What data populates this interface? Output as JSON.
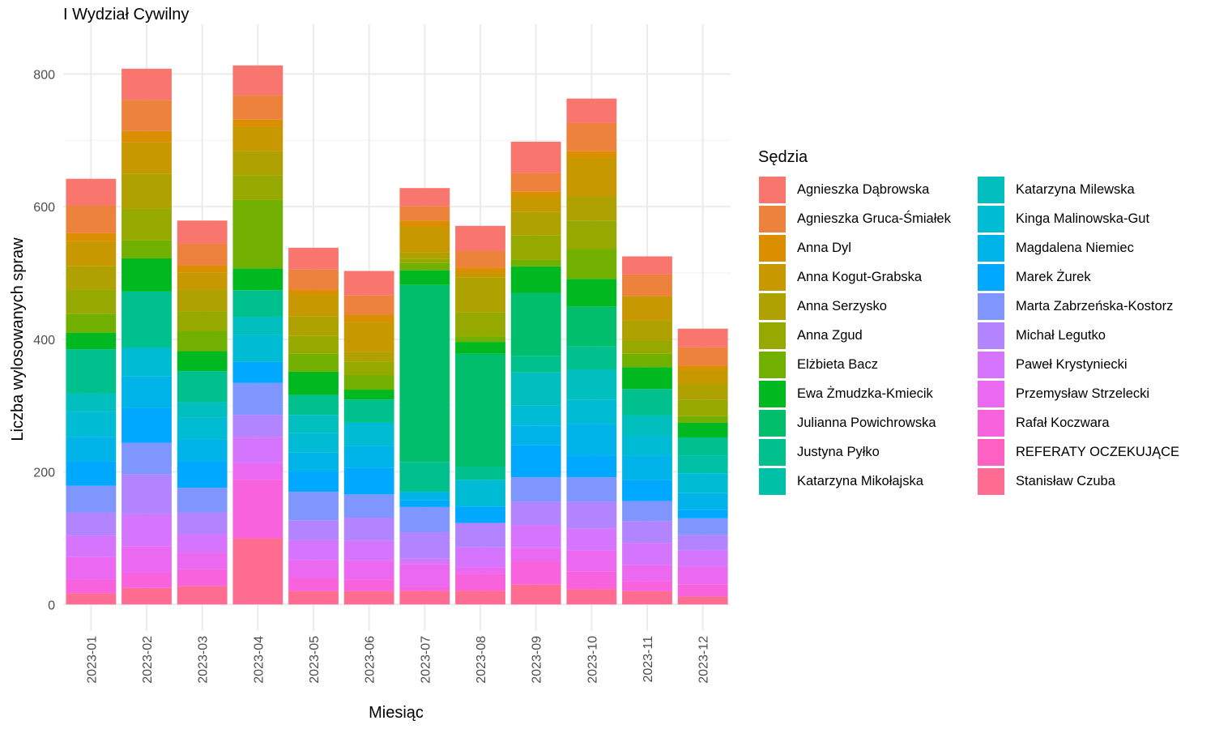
{
  "chart_data": {
    "type": "bar",
    "stacked": true,
    "title": "I Wydział Cywilny",
    "xlabel": "Miesiąc",
    "ylabel": "Liczba wylosowanych spraw",
    "ylim": [
      -40,
      875
    ],
    "yticks": [
      0,
      200,
      400,
      600,
      800
    ],
    "grid": true,
    "legend_title": "Sędzia",
    "legend_position": "right",
    "categories": [
      "2023-01",
      "2023-02",
      "2023-03",
      "2023-04",
      "2023-05",
      "2023-06",
      "2023-07",
      "2023-08",
      "2023-09",
      "2023-10",
      "2023-11",
      "2023-12"
    ],
    "series": [
      {
        "name": "Agnieszka Dąbrowska",
        "color": "#F8766D",
        "values": [
          40,
          47,
          35,
          45,
          33,
          37,
          27,
          38,
          47,
          37,
          27,
          28
        ]
      },
      {
        "name": "Agnieszka Gruca-Śmiałek",
        "color": "#EC823C",
        "values": [
          42,
          47,
          33,
          37,
          30,
          29,
          22,
          25,
          28,
          42,
          33,
          28
        ]
      },
      {
        "name": "Anna Dyl",
        "color": "#DB8E00",
        "values": [
          12,
          17,
          10,
          10,
          8,
          11,
          10,
          8,
          7,
          10,
          0,
          6
        ]
      },
      {
        "name": "Anna Kogut-Grabska",
        "color": "#C79800",
        "values": [
          38,
          47,
          26,
          37,
          32,
          45,
          38,
          7,
          24,
          58,
          37,
          22
        ]
      },
      {
        "name": "Anna Serzysko",
        "color": "#AFA100",
        "values": [
          35,
          53,
          33,
          37,
          30,
          15,
          10,
          52,
          35,
          37,
          30,
          23
        ]
      },
      {
        "name": "Anna Zgud",
        "color": "#95A900",
        "values": [
          37,
          48,
          30,
          37,
          27,
          20,
          6,
          37,
          37,
          43,
          20,
          25
        ]
      },
      {
        "name": "Elżbieta Bacz",
        "color": "#72B000",
        "values": [
          28,
          27,
          30,
          103,
          27,
          22,
          11,
          8,
          10,
          45,
          20,
          10
        ]
      },
      {
        "name": "Ewa Żmudzka-Kmiecik",
        "color": "#00B81F",
        "values": [
          25,
          50,
          30,
          33,
          35,
          15,
          22,
          18,
          40,
          42,
          33,
          22
        ]
      },
      {
        "name": "Julianna Powichrowska",
        "color": "#00BE6C",
        "values": [
          0,
          0,
          0,
          0,
          0,
          0,
          267,
          170,
          95,
          60,
          0,
          0
        ]
      },
      {
        "name": "Justyna Pyłko",
        "color": "#00C08D",
        "values": [
          67,
          85,
          47,
          40,
          30,
          35,
          45,
          20,
          25,
          35,
          40,
          27
        ]
      },
      {
        "name": "Katarzyna Mikołajska",
        "color": "#00C1A7",
        "values": [
          0,
          0,
          0,
          0,
          0,
          0,
          0,
          0,
          0,
          0,
          0,
          27
        ]
      },
      {
        "name": "Katarzyna Milewska",
        "color": "#00BFBE",
        "values": [
          28,
          0,
          23,
          28,
          27,
          0,
          0,
          0,
          50,
          45,
          30,
          0
        ]
      },
      {
        "name": "Kinga Malinowska-Gut",
        "color": "#00BBD4",
        "values": [
          37,
          43,
          33,
          40,
          30,
          35,
          0,
          40,
          30,
          37,
          30,
          30
        ]
      },
      {
        "name": "Magdalena Niemiec",
        "color": "#00B3E8",
        "values": [
          37,
          48,
          33,
          0,
          29,
          33,
          13,
          0,
          30,
          47,
          37,
          25
        ]
      },
      {
        "name": "Marek Żurek",
        "color": "#00A9FF",
        "values": [
          37,
          52,
          40,
          32,
          30,
          40,
          10,
          25,
          48,
          33,
          32,
          13
        ]
      },
      {
        "name": "Marta Zabrzeńska-Kostorz",
        "color": "#7F96FF",
        "values": [
          40,
          48,
          37,
          48,
          43,
          35,
          38,
          0,
          37,
          37,
          30,
          25
        ]
      },
      {
        "name": "Michał Legutko",
        "color": "#B384FF",
        "values": [
          35,
          60,
          33,
          33,
          30,
          35,
          40,
          37,
          35,
          40,
          33,
          23
        ]
      },
      {
        "name": "Paweł Krystyniecki",
        "color": "#D575FE",
        "values": [
          32,
          48,
          28,
          40,
          30,
          30,
          8,
          30,
          35,
          33,
          33,
          25
        ]
      },
      {
        "name": "Przemysław Strzelecki",
        "color": "#EB69F0",
        "values": [
          35,
          40,
          25,
          25,
          27,
          28,
          35,
          10,
          20,
          32,
          25,
          27
        ]
      },
      {
        "name": "Rafał Koczwara",
        "color": "#F962DD",
        "values": [
          20,
          23,
          25,
          88,
          20,
          18,
          6,
          25,
          35,
          27,
          15,
          18
        ]
      },
      {
        "name": "REFERATY OCZEKUJĄCE",
        "color": "#FF61C3",
        "values": [
          0,
          0,
          0,
          0,
          0,
          0,
          0,
          0,
          0,
          0,
          0,
          0
        ]
      },
      {
        "name": "Stanisław Czuba",
        "color": "#FF6C91",
        "values": [
          17,
          25,
          28,
          100,
          20,
          20,
          20,
          21,
          30,
          23,
          20,
          12
        ]
      }
    ]
  }
}
